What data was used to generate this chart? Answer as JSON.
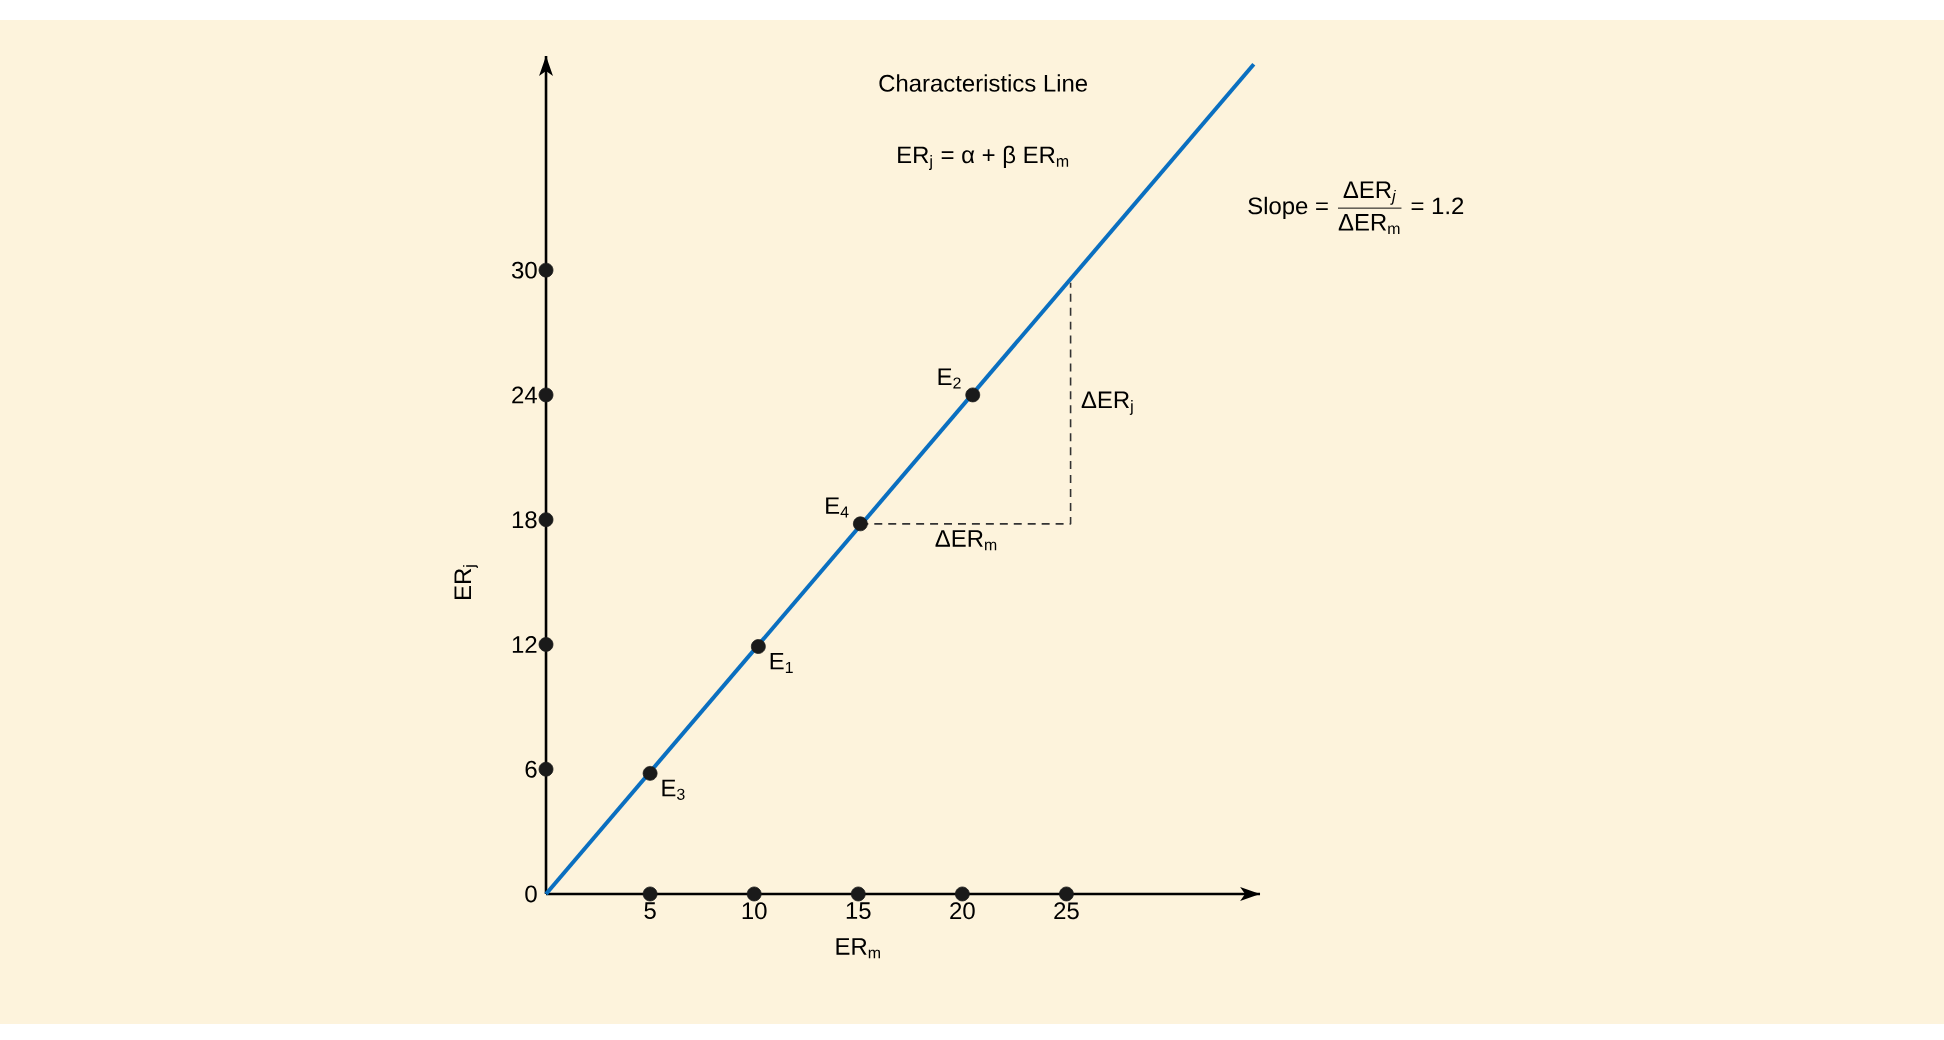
{
  "chart_data": {
    "type": "line",
    "xlabel": "ER$_{m}$",
    "ylabel": "ER$_{j}$",
    "xlim": [
      0,
      34.3
    ],
    "ylim": [
      0,
      40.3
    ],
    "xticks": [
      5,
      10,
      15,
      20,
      25
    ],
    "yticks": [
      0,
      6,
      12,
      18,
      24,
      30
    ],
    "marker": "circle",
    "series": [
      {
        "color": "#0a6fc0",
        "marker": "none",
        "x": [
          0,
          34
        ],
        "values": [
          0,
          39.9
        ]
      },
      {
        "type": "scatter",
        "color": "#1a1a1a",
        "x": [
          5,
          10,
          15,
          20,
          25
        ],
        "values": [
          0,
          0,
          0,
          0,
          0
        ]
      },
      {
        "type": "scatter",
        "color": "#1a1a1a",
        "x": [
          0,
          0,
          0,
          0,
          0
        ],
        "values": [
          6,
          12,
          18,
          24,
          30
        ]
      },
      {
        "type": "scatter",
        "color": "#1a1a1a",
        "x": [
          5,
          10.2,
          15.1,
          20.5
        ],
        "values": [
          5.8,
          11.9,
          17.8,
          24.0
        ]
      },
      {
        "color": "#333333",
        "marker": "none",
        "line_style": "dashed",
        "x": [
          15.1,
          25.2,
          25.2
        ],
        "values": [
          17.8,
          17.8,
          29.4
        ]
      }
    ],
    "annotations": [
      "Characteristics Line",
      "ER$_{j}$ = α + β ER$_{m}$",
      "\\text{Slope = }\\frac{\\text{ΔER}_{\\text{\\itshape j}}}{\\text{ΔER}_{\\text{m}}}\\text{ = 1.2}",
      {
        "text": "ΔER$_{j}$",
        "x": 25.2,
        "y": 23.6
      },
      {
        "text": "ΔER$_{m}$",
        "x": 20.2,
        "y": 17.8
      },
      {
        "text": "E$_{1}$",
        "x": 10.2,
        "y": 11.9
      },
      {
        "text": "E$_{2}$",
        "x": 20.5,
        "y": 24.0
      },
      {
        "text": "E$_{3}$",
        "x": 5,
        "y": 5.8
      },
      {
        "text": "E$_{4}$",
        "x": 15.1,
        "y": 17.8
      }
    ]
  }
}
